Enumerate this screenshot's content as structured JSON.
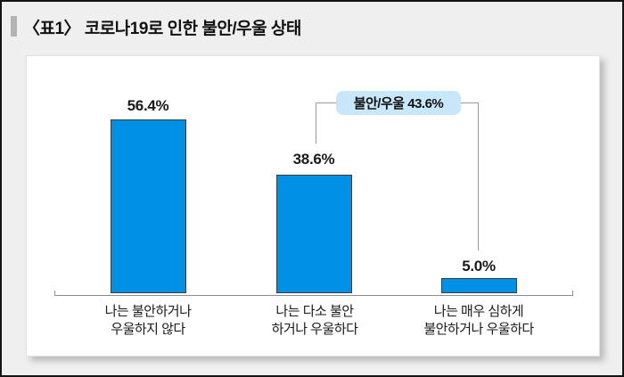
{
  "title": {
    "text": "〈표1〉 코로나19로 인한 불안/우울 상태"
  },
  "chart_data": {
    "type": "bar",
    "title": "〈표1〉 코로나19로 인한 불안/우울 상태",
    "categories": [
      "나는 불안하거나 우울하지 않다",
      "나는 다소 불안 하거나 우울하다",
      "나는 매우 심하게 불안하거나 우울하다"
    ],
    "category_lines": [
      [
        "나는 불안하거나",
        "우울하지 않다"
      ],
      [
        "나는 다소 불안",
        "하거나 우울하다"
      ],
      [
        "나는 매우 심하게",
        "불안하거나 우울하다"
      ]
    ],
    "values": [
      56.4,
      38.6,
      5.0
    ],
    "value_labels": [
      "56.4%",
      "38.6%",
      "5.0%"
    ],
    "ylim": [
      0,
      65
    ],
    "grid": false,
    "legend": "none",
    "annotation": {
      "label": "불안/우울 43.6%",
      "value": 43.6,
      "spans_categories": [
        "나는 다소 불안 하거나 우울하다",
        "나는 매우 심하게 불안하거나 우울하다"
      ]
    }
  },
  "colors": {
    "bar": "#0091e6",
    "bar_border": "#3c3c3c",
    "callout_bg": "#c8e7f9",
    "axis_line": "#8c8c8c",
    "page_bg": "#efefef",
    "panel_bg": "#ffffff",
    "title_text": "#111111"
  }
}
